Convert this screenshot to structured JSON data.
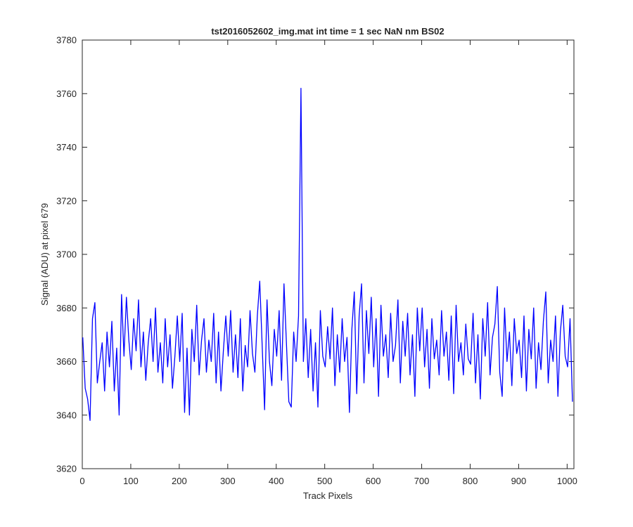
{
  "chart_data": {
    "type": "line",
    "title": "tst2016052602_img.mat int time = 1 sec  NaN nm BS02",
    "xlabel": "Track Pixels",
    "ylabel": "Signal (ADU) at pixel 679",
    "xlim": [
      0,
      1014
    ],
    "ylim": [
      3620,
      3780
    ],
    "xticks": [
      0,
      100,
      200,
      300,
      400,
      500,
      600,
      700,
      800,
      900,
      1000
    ],
    "yticks": [
      3620,
      3640,
      3660,
      3680,
      3700,
      3720,
      3740,
      3760,
      3780
    ],
    "grid": false,
    "x": [
      1,
      6,
      11,
      16,
      21,
      26,
      31,
      36,
      41,
      46,
      51,
      56,
      61,
      66,
      71,
      76,
      81,
      86,
      91,
      96,
      101,
      106,
      111,
      116,
      121,
      126,
      131,
      136,
      141,
      146,
      151,
      156,
      161,
      166,
      171,
      176,
      181,
      186,
      191,
      196,
      201,
      206,
      211,
      216,
      221,
      226,
      231,
      236,
      241,
      246,
      251,
      256,
      261,
      266,
      271,
      276,
      281,
      286,
      291,
      296,
      301,
      306,
      311,
      316,
      321,
      326,
      331,
      336,
      341,
      346,
      351,
      356,
      361,
      366,
      371,
      376,
      381,
      386,
      391,
      396,
      401,
      406,
      411,
      416,
      421,
      426,
      431,
      436,
      441,
      446,
      451,
      456,
      461,
      466,
      471,
      476,
      481,
      486,
      491,
      496,
      501,
      506,
      511,
      516,
      521,
      526,
      531,
      536,
      541,
      546,
      551,
      556,
      561,
      566,
      571,
      576,
      581,
      586,
      591,
      596,
      601,
      606,
      611,
      616,
      621,
      626,
      631,
      636,
      641,
      646,
      651,
      656,
      661,
      666,
      671,
      676,
      681,
      686,
      691,
      696,
      701,
      706,
      711,
      716,
      721,
      726,
      731,
      736,
      741,
      746,
      751,
      756,
      761,
      766,
      771,
      776,
      781,
      786,
      791,
      796,
      801,
      806,
      811,
      816,
      821,
      826,
      831,
      836,
      841,
      846,
      851,
      856,
      861,
      866,
      871,
      876,
      881,
      886,
      891,
      896,
      901,
      906,
      911,
      916,
      921,
      926,
      931,
      936,
      941,
      946,
      951,
      956,
      961,
      966,
      971,
      976,
      981,
      986,
      991,
      996,
      1001,
      1006,
      1011
    ],
    "series": [
      {
        "color": "#0000ff",
        "values": [
          3669,
          3650,
          3646,
          3638,
          3676,
          3682,
          3652,
          3660,
          3667,
          3649,
          3671,
          3658,
          3675,
          3649,
          3665,
          3640,
          3685,
          3662,
          3684,
          3668,
          3657,
          3676,
          3664,
          3683,
          3658,
          3671,
          3653,
          3667,
          3676,
          3660,
          3680,
          3656,
          3667,
          3652,
          3676,
          3658,
          3670,
          3650,
          3662,
          3677,
          3660,
          3678,
          3641,
          3665,
          3640,
          3672,
          3660,
          3681,
          3655,
          3668,
          3676,
          3656,
          3668,
          3660,
          3678,
          3652,
          3671,
          3649,
          3664,
          3677,
          3662,
          3679,
          3656,
          3670,
          3654,
          3676,
          3649,
          3666,
          3658,
          3679,
          3663,
          3656,
          3677,
          3690,
          3666,
          3642,
          3683,
          3660,
          3651,
          3672,
          3662,
          3679,
          3653,
          3689,
          3667,
          3645,
          3643,
          3671,
          3660,
          3677,
          3762,
          3660,
          3676,
          3654,
          3672,
          3649,
          3667,
          3643,
          3679,
          3662,
          3658,
          3673,
          3661,
          3680,
          3651,
          3670,
          3656,
          3676,
          3660,
          3669,
          3641,
          3672,
          3686,
          3648,
          3677,
          3689,
          3652,
          3679,
          3663,
          3684,
          3658,
          3676,
          3647,
          3681,
          3662,
          3670,
          3654,
          3678,
          3660,
          3666,
          3683,
          3652,
          3675,
          3662,
          3678,
          3655,
          3670,
          3647,
          3680,
          3664,
          3680,
          3658,
          3672,
          3650,
          3676,
          3661,
          3668,
          3655,
          3679,
          3662,
          3671,
          3653,
          3677,
          3648,
          3681,
          3660,
          3667,
          3655,
          3674,
          3661,
          3659,
          3678,
          3652,
          3670,
          3646,
          3676,
          3662,
          3682,
          3655,
          3669,
          3674,
          3688,
          3656,
          3647,
          3680,
          3660,
          3671,
          3651,
          3676,
          3663,
          3668,
          3654,
          3677,
          3649,
          3672,
          3661,
          3680,
          3650,
          3667,
          3657,
          3675,
          3686,
          3652,
          3668,
          3660,
          3677,
          3647,
          3671,
          3681,
          3662,
          3658,
          3676,
          3645
        ]
      }
    ]
  }
}
